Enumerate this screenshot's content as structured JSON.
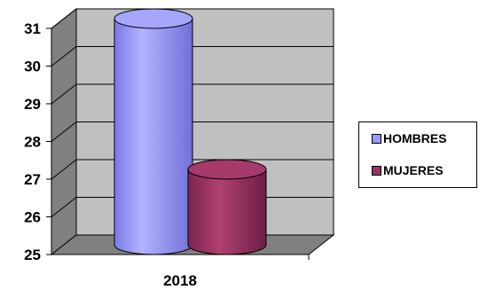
{
  "chart_data": {
    "type": "bar",
    "categories": [
      "2018"
    ],
    "series": [
      {
        "name": "HOMBRES",
        "values": [
          31
        ],
        "color": "#9999ff"
      },
      {
        "name": "MUJERES",
        "values": [
          27
        ],
        "color": "#993366"
      }
    ],
    "title": "",
    "xlabel": "",
    "ylabel": "",
    "ylim": [
      25,
      31
    ],
    "yticks": [
      25,
      26,
      27,
      28,
      29,
      30,
      31
    ],
    "grid": true,
    "legend_position": "right",
    "wall_color": "#c0c0c0"
  }
}
